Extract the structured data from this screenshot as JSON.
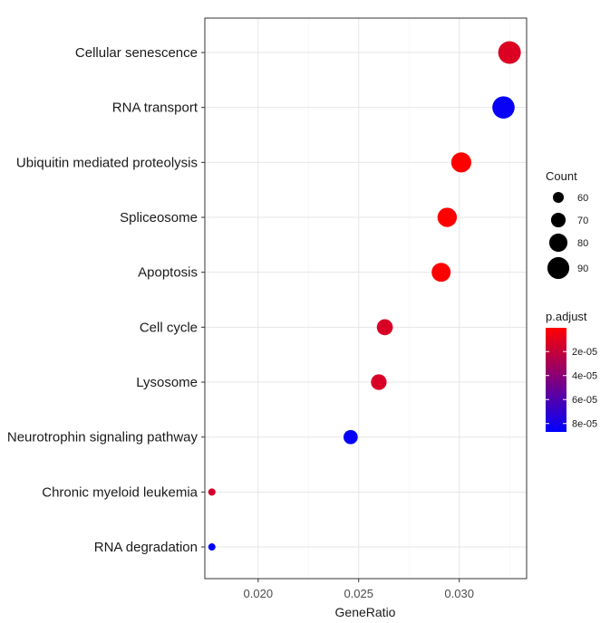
{
  "chart_data": {
    "type": "scatter",
    "title": "",
    "xlabel": "GeneRatio",
    "ylabel": "",
    "xlim": [
      0.01735,
      0.03335
    ],
    "x_ticks": [
      0.02,
      0.025,
      0.03
    ],
    "x_tick_labels": [
      "0.020",
      "0.025",
      "0.030"
    ],
    "grid": true,
    "categories": [
      "Cellular senescence",
      "RNA transport",
      "Ubiquitin mediated proteolysis",
      "Spliceosome",
      "Apoptosis",
      "Cell cycle",
      "Lysosome",
      "Neurotrophin signaling pathway",
      "Chronic myeloid leukemia",
      "RNA degradation"
    ],
    "points": [
      {
        "term": "Cellular senescence",
        "gene_ratio": 0.0325,
        "count": 92,
        "p_adjust": 1.2e-05
      },
      {
        "term": "RNA transport",
        "gene_ratio": 0.0322,
        "count": 91,
        "p_adjust": 8.4e-05
      },
      {
        "term": "Ubiquitin mediated proteolysis",
        "gene_ratio": 0.0301,
        "count": 85,
        "p_adjust": 2e-07
      },
      {
        "term": "Spliceosome",
        "gene_ratio": 0.0294,
        "count": 83,
        "p_adjust": 3e-07
      },
      {
        "term": "Apoptosis",
        "gene_ratio": 0.0291,
        "count": 82,
        "p_adjust": 5e-07
      },
      {
        "term": "Cell cycle",
        "gene_ratio": 0.0263,
        "count": 74,
        "p_adjust": 1.3e-05
      },
      {
        "term": "Lysosome",
        "gene_ratio": 0.026,
        "count": 73,
        "p_adjust": 1.3e-05
      },
      {
        "term": "Neurotrophin signaling pathway",
        "gene_ratio": 0.0246,
        "count": 69,
        "p_adjust": 8.5e-05
      },
      {
        "term": "Chronic myeloid leukemia",
        "gene_ratio": 0.0177,
        "count": 50,
        "p_adjust": 1.5e-05
      },
      {
        "term": "RNA degradation",
        "gene_ratio": 0.0177,
        "count": 50,
        "p_adjust": 8.7e-05
      }
    ],
    "size_legend": {
      "title": "Count",
      "values": [
        60,
        70,
        80,
        90
      ],
      "labels": [
        "60",
        "70",
        "80",
        "90"
      ]
    },
    "color_legend": {
      "title": "p.adjust",
      "low_color": "#ff0000",
      "high_color": "#0000ff",
      "range": [
        2e-07,
        8.7e-05
      ],
      "ticks": [
        2e-05,
        4e-05,
        6e-05,
        8e-05
      ],
      "tick_labels": [
        "2e-05",
        "4e-05",
        "6e-05",
        "8e-05"
      ]
    }
  }
}
